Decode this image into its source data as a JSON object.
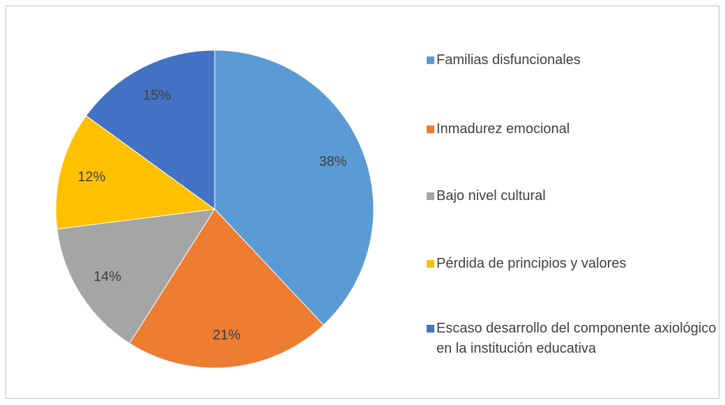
{
  "chart_data": {
    "type": "pie",
    "categories": [
      "Familias disfuncionales",
      "Inmadurez emocional",
      "Bajo nivel cultural",
      "Pérdida de principios y valores",
      "Escaso desarrollo del componente axiológico en la institución educativa"
    ],
    "values": [
      38,
      21,
      14,
      12,
      15
    ],
    "value_labels": [
      "38%",
      "21%",
      "14%",
      "12%",
      "15%"
    ],
    "colors": [
      "#5b9bd5",
      "#ed7d31",
      "#a5a5a5",
      "#ffc000",
      "#4472c4"
    ],
    "legend": "right"
  }
}
